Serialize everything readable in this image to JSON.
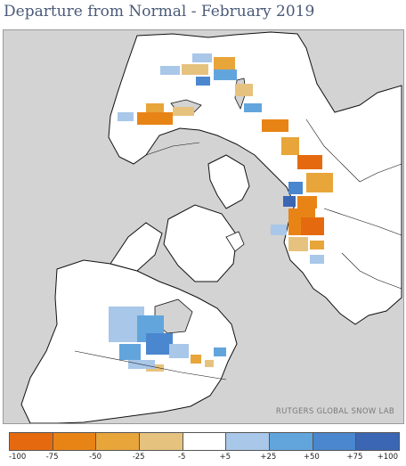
{
  "title": "Departure from Normal - February 2019",
  "credit": "RUTGERS GLOBAL SNOW LAB",
  "map": {
    "projection": "polar stereographic (Northern Hemisphere)",
    "ocean_color": "#d3d3d3",
    "land_color": "#ffffff",
    "coastline_color": "#111111"
  },
  "legend": {
    "bins": [
      {
        "color": "#e56a0f"
      },
      {
        "color": "#e88416"
      },
      {
        "color": "#e8a53a"
      },
      {
        "color": "#e6c27f"
      },
      {
        "color": "#ffffff"
      },
      {
        "color": "#a9c7e8"
      },
      {
        "color": "#62a5dd"
      },
      {
        "color": "#4a87cf"
      },
      {
        "color": "#3a66b4"
      }
    ],
    "ticks": [
      "-100",
      "-75",
      "-50",
      "-25",
      "-5",
      "+5",
      "+25",
      "+50",
      "+75",
      "+100"
    ]
  }
}
